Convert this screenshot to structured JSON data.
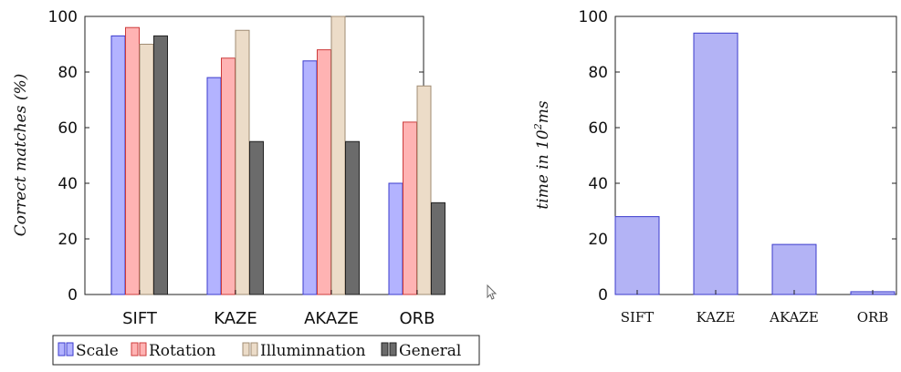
{
  "chart_data": [
    {
      "type": "bar",
      "categories": [
        "SIFT",
        "KAZE",
        "AKAZE",
        "ORB"
      ],
      "series": [
        {
          "name": "Scale",
          "values": [
            93,
            78,
            84,
            40
          ],
          "color": "#b3b3ff",
          "stroke": "#3b3bcc"
        },
        {
          "name": "Rotation",
          "values": [
            96,
            85,
            88,
            62
          ],
          "color": "#ffb3b3",
          "stroke": "#cc3b3b"
        },
        {
          "name": "Illuminnation",
          "values": [
            90,
            95,
            100,
            75
          ],
          "color": "#ecdcc8",
          "stroke": "#a08c73"
        },
        {
          "name": "General",
          "values": [
            93,
            55,
            55,
            33
          ],
          "color": "#6b6b6b",
          "stroke": "#222222"
        }
      ],
      "ylabel": "Correct matches (%)",
      "ylim": [
        0,
        100
      ],
      "yticks": [
        "0",
        "20",
        "40",
        "60",
        "80",
        "100"
      ],
      "legend": "bottom"
    },
    {
      "type": "bar",
      "categories": [
        "SIFT",
        "KAZE",
        "AKAZE",
        "ORB"
      ],
      "values": [
        28,
        94,
        18,
        1
      ],
      "color": "#b3b3f5",
      "stroke": "#3b3bcc",
      "ylabel_main": "time in 10",
      "ylabel_sup": "2",
      "ylabel_unit": "ms",
      "ylim": [
        0,
        100
      ],
      "yticks": [
        "0",
        "20",
        "40",
        "60",
        "80",
        "100"
      ]
    }
  ]
}
